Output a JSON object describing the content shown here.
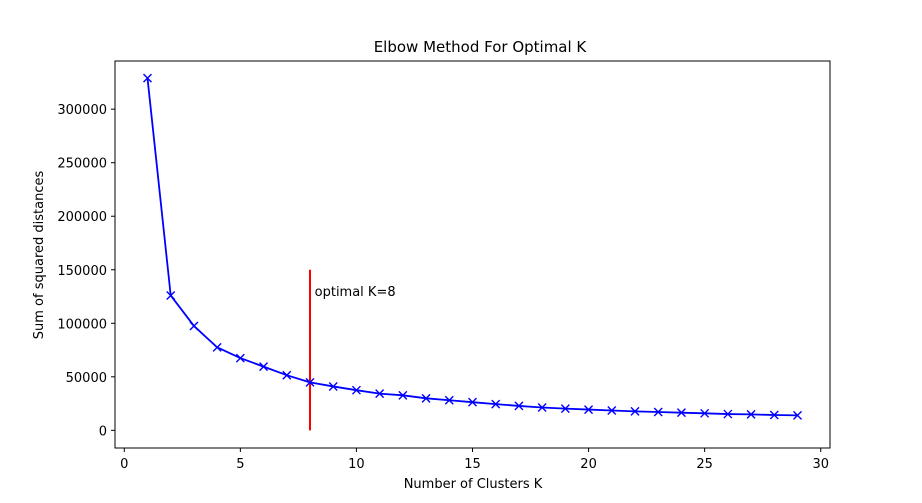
{
  "chart_data": {
    "type": "line",
    "title": "Elbow Method For Optimal K",
    "xlabel": "Number of Clusters K",
    "ylabel": "Sum of squared distances",
    "xlim": [
      -0.4,
      30.4
    ],
    "ylim": [
      -16500,
      345000
    ],
    "xticks": [
      0,
      5,
      10,
      15,
      20,
      25,
      30
    ],
    "yticks": [
      0,
      50000,
      100000,
      150000,
      200000,
      250000,
      300000
    ],
    "grid": false,
    "series": [
      {
        "color": "#0000ff",
        "marker": "x",
        "x": [
          1,
          2,
          3,
          4,
          5,
          6,
          7,
          8,
          9,
          10,
          11,
          12,
          13,
          14,
          15,
          16,
          17,
          18,
          19,
          20,
          21,
          22,
          23,
          24,
          25,
          26,
          27,
          28,
          29
        ],
        "y": [
          329000,
          126000,
          97500,
          77500,
          67500,
          59500,
          51500,
          44800,
          41000,
          37500,
          34300,
          32700,
          29900,
          28100,
          26300,
          24500,
          22800,
          21300,
          20300,
          19400,
          18500,
          17700,
          17100,
          16500,
          15900,
          15200,
          14900,
          14300,
          14000
        ]
      }
    ],
    "vline": {
      "x": 8,
      "ymin": 0,
      "ymax": 150000,
      "color": "#ff0000"
    },
    "annotation": {
      "text": "optimal K=8",
      "x": 8.2,
      "y": 130000
    }
  }
}
